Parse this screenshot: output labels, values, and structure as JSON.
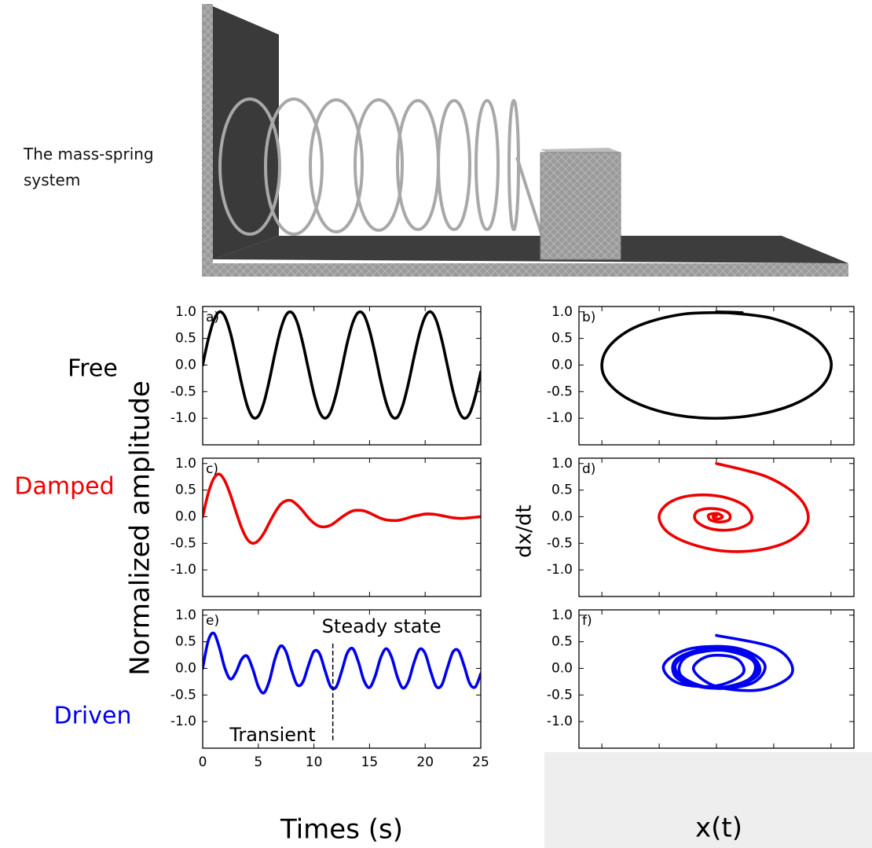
{
  "figure": {
    "illustration_label": "The mass-spring system",
    "row_labels": [
      {
        "text": "Free",
        "color": "#000000"
      },
      {
        "text": "Damped",
        "color": "#ee0000"
      },
      {
        "text": "Driven",
        "color": "#0000ee"
      }
    ],
    "y_label": "Normalized amplitude",
    "x_label": "Times (s)",
    "phase_y_label": "dx/dt",
    "phase_x_label": "x(t)"
  },
  "chart_data": [
    {
      "type": "line",
      "panel_label": "a)",
      "color": "#000000",
      "x": [
        0,
        0.5,
        1,
        1.5,
        2,
        2.5,
        3,
        3.5,
        4,
        4.5,
        5,
        5.5,
        6,
        6.5,
        7,
        7.5,
        8,
        8.5,
        9,
        9.5,
        10,
        10.5,
        11,
        11.5,
        12,
        12.5,
        13,
        13.5,
        14,
        14.5,
        15,
        15.5,
        16,
        16.5,
        17,
        17.5,
        18,
        18.5,
        19,
        19.5,
        20,
        20.5,
        21,
        21.5,
        22,
        22.5,
        23,
        23.5,
        24,
        24.5,
        25
      ],
      "values": [
        0,
        0.48,
        0.84,
        1.0,
        0.91,
        0.6,
        0.14,
        -0.35,
        -0.76,
        -0.98,
        -0.96,
        -0.71,
        -0.28,
        0.22,
        0.66,
        0.94,
        0.99,
        0.8,
        0.41,
        -0.07,
        -0.54,
        -0.88,
        -1.0,
        -0.88,
        -0.54,
        -0.07,
        0.42,
        0.8,
        0.99,
        0.94,
        0.65,
        0.21,
        -0.29,
        -0.71,
        -0.96,
        -0.98,
        -0.75,
        -0.34,
        0.15,
        0.6,
        0.91,
        1.0,
        0.84,
        0.47,
        -0.01,
        -0.49,
        -0.85,
        -1.0,
        -0.91,
        -0.59,
        -0.13
      ],
      "xlim": [
        0,
        25
      ],
      "xticks": [
        0,
        5,
        10,
        15,
        20,
        25
      ],
      "show_xtick_labels": false,
      "ylim": [
        -1.5,
        1.1
      ],
      "yticks": [
        {
          "value": 1,
          "label": "1.0"
        },
        0.5,
        {
          "value": 0,
          "label": "0.0"
        },
        -0.5,
        {
          "value": -1,
          "label": "-1.0"
        }
      ]
    },
    {
      "type": "line",
      "panel_label": "b)",
      "color": "#000000",
      "x": [
        0,
        0.48,
        0.84,
        1.0,
        0.91,
        0.6,
        0.14,
        -0.35,
        -0.76,
        -0.98,
        -0.96,
        -0.71,
        -0.28,
        0.22,
        0
      ],
      "values": [
        1,
        0.88,
        0.54,
        0.07,
        -0.42,
        -0.8,
        -0.99,
        -0.94,
        -0.65,
        -0.21,
        0.28,
        0.71,
        0.96,
        0.98,
        1
      ],
      "xlim": [
        -1.2,
        1.2
      ],
      "xticks": [
        -1,
        -0.5,
        0,
        0.5,
        1
      ],
      "show_xtick_labels": false,
      "ylim": [
        -1.5,
        1.1
      ],
      "yticks": [
        {
          "value": 1,
          "label": "1.0"
        },
        0.5,
        {
          "value": 0,
          "label": "0.0"
        },
        -0.5,
        {
          "value": -1,
          "label": "-1.0"
        }
      ]
    },
    {
      "type": "line",
      "panel_label": "c)",
      "color": "#ee0000",
      "x": [
        0,
        0.5,
        1,
        1.5,
        2,
        2.5,
        3,
        3.5,
        4,
        4.5,
        5,
        5.5,
        6,
        6.5,
        7,
        7.5,
        8,
        8.5,
        9,
        9.5,
        10,
        10.5,
        11,
        11.5,
        12,
        12.5,
        13,
        13.5,
        14,
        14.5,
        15,
        15.5,
        16,
        16.5,
        17,
        17.5,
        18,
        18.5,
        19,
        19.5,
        20,
        20.5,
        21,
        21.5,
        22,
        22.5,
        23,
        23.5,
        24,
        24.5,
        25
      ],
      "values": [
        0,
        0.44,
        0.72,
        0.8,
        0.67,
        0.41,
        0.09,
        -0.21,
        -0.42,
        -0.5,
        -0.45,
        -0.31,
        -0.11,
        0.08,
        0.23,
        0.3,
        0.3,
        0.22,
        0.11,
        -0.02,
        -0.12,
        -0.18,
        -0.19,
        -0.16,
        -0.09,
        -0.01,
        0.06,
        0.11,
        0.12,
        0.11,
        0.07,
        0.02,
        -0.03,
        -0.06,
        -0.07,
        -0.07,
        -0.05,
        -0.02,
        0.01,
        0.03,
        0.05,
        0.05,
        0.04,
        0.02,
        0,
        -0.02,
        -0.03,
        -0.03,
        -0.02,
        -0.01,
        0
      ],
      "xlim": [
        0,
        25
      ],
      "xticks": [
        0,
        5,
        10,
        15,
        20,
        25
      ],
      "show_xtick_labels": false,
      "ylim": [
        -1.5,
        1.1
      ],
      "yticks": [
        {
          "value": 1,
          "label": "1.0"
        },
        0.5,
        {
          "value": 0,
          "label": "0.0"
        },
        -0.5,
        {
          "value": -1,
          "label": "-1.0"
        }
      ]
    },
    {
      "type": "line",
      "panel_label": "d)",
      "color": "#ee0000",
      "x": [
        0,
        0.44,
        0.72,
        0.8,
        0.67,
        0.41,
        0.09,
        -0.21,
        -0.42,
        -0.5,
        -0.45,
        -0.31,
        -0.11,
        0.08,
        0.23,
        0.3,
        0.3,
        0.22,
        0.11,
        -0.02,
        -0.12,
        -0.18,
        -0.19,
        -0.16,
        -0.09,
        -0.01,
        0.06,
        0.11,
        0.12,
        0.11,
        0.07,
        0.02,
        -0.03,
        -0.06,
        -0.07,
        -0.07,
        -0.05,
        -0.02,
        0.01,
        0.03,
        0.05,
        0.05,
        0.04,
        0.02,
        0,
        -0.02,
        -0.03,
        -0.03,
        -0.02,
        -0.01,
        0
      ],
      "values": [
        1,
        0.75,
        0.36,
        -0.06,
        -0.41,
        -0.61,
        -0.65,
        -0.52,
        -0.3,
        -0.03,
        0.2,
        0.36,
        0.41,
        0.36,
        0.23,
        0.07,
        -0.09,
        -0.2,
        -0.25,
        -0.24,
        -0.17,
        -0.07,
        0.03,
        0.11,
        0.15,
        0.15,
        0.12,
        0.06,
        0,
        -0.06,
        -0.09,
        -0.1,
        -0.08,
        -0.05,
        -0.01,
        0.03,
        0.05,
        0.06,
        0.06,
        0.04,
        0.01,
        -0.01,
        -0.03,
        -0.04,
        -0.04,
        -0.03,
        -0.01,
        0,
        0.02,
        0.02,
        0.02
      ],
      "xlim": [
        -1.2,
        1.2
      ],
      "xticks": [
        -1,
        -0.5,
        0,
        0.5,
        1
      ],
      "show_xtick_labels": false,
      "ylim": [
        -1.5,
        1.1
      ],
      "yticks": [
        {
          "value": 1,
          "label": "1.0"
        },
        0.5,
        {
          "value": 0,
          "label": "0.0"
        },
        -0.5,
        {
          "value": -1,
          "label": "-1.0"
        }
      ]
    },
    {
      "type": "line",
      "panel_label": "e)",
      "color": "#0000ee",
      "x": [
        0,
        0.5,
        1,
        1.5,
        2,
        2.5,
        3,
        3.5,
        4,
        4.5,
        5,
        5.5,
        6,
        6.5,
        7,
        7.5,
        8,
        8.5,
        9,
        9.5,
        10,
        10.5,
        11,
        11.5,
        12,
        12.5,
        13,
        13.5,
        14,
        14.5,
        15,
        15.5,
        16,
        16.5,
        17,
        17.5,
        18,
        18.5,
        19,
        19.5,
        20,
        20.5,
        21,
        21.5,
        22,
        22.5,
        23,
        23.5,
        24,
        24.5,
        25
      ],
      "values": [
        0,
        0.52,
        0.66,
        0.39,
        0,
        -0.2,
        -0.07,
        0.17,
        0.23,
        -0.01,
        -0.34,
        -0.46,
        -0.23,
        0.18,
        0.42,
        0.31,
        -0.04,
        -0.31,
        -0.26,
        0.05,
        0.32,
        0.28,
        -0.04,
        -0.34,
        -0.35,
        -0.05,
        0.29,
        0.37,
        0.12,
        -0.23,
        -0.36,
        -0.15,
        0.2,
        0.37,
        0.2,
        -0.16,
        -0.37,
        -0.24,
        0.11,
        0.36,
        0.28,
        -0.06,
        -0.34,
        -0.31,
        0.01,
        0.31,
        0.33,
        0.05,
        -0.28,
        -0.35,
        -0.1
      ],
      "xlim": [
        0,
        25
      ],
      "xticks": [
        0,
        5,
        10,
        15,
        20,
        25
      ],
      "show_xtick_labels": true,
      "ylim": [
        -1.5,
        1.1
      ],
      "yticks": [
        {
          "value": 1,
          "label": "1.0"
        },
        0.5,
        {
          "value": 0,
          "label": "0.0"
        },
        -0.5,
        {
          "value": -1,
          "label": "-1.0"
        }
      ],
      "annotations": [
        "Steady state",
        "Transient"
      ],
      "marker_line": {
        "x": 11.7,
        "y": [
          -1.35,
          0.5
        ]
      }
    },
    {
      "type": "line",
      "panel_label": "f)",
      "color": "#0000ee",
      "x": [
        0,
        0.52,
        0.66,
        0.39,
        0,
        -0.2,
        -0.07,
        0.17,
        0.23,
        -0.01,
        -0.34,
        -0.46,
        -0.23,
        0.18,
        0.42,
        0.31,
        -0.04,
        -0.31,
        -0.26,
        0.05,
        0.32,
        0.28,
        -0.04,
        -0.34,
        -0.35,
        -0.05,
        0.29,
        0.37,
        0.12,
        -0.23,
        -0.36,
        -0.15,
        0.2,
        0.37,
        0.2,
        -0.16,
        -0.37,
        -0.24,
        0.11,
        0.36,
        0.28,
        -0.06,
        -0.34,
        -0.31,
        0.01,
        0.31,
        0.33,
        0.05,
        -0.28,
        -0.35,
        -0.1
      ],
      "values": [
        0.62,
        0.37,
        -0.09,
        -0.4,
        -0.34,
        -0.02,
        0.23,
        0.19,
        -0.1,
        -0.33,
        -0.27,
        0.06,
        0.37,
        0.38,
        0.08,
        -0.28,
        -0.37,
        -0.13,
        0.22,
        0.34,
        0.14,
        -0.21,
        -0.37,
        -0.19,
        0.17,
        0.38,
        0.25,
        -0.1,
        -0.36,
        -0.28,
        0.06,
        0.34,
        0.31,
        0,
        -0.31,
        -0.33,
        -0.05,
        0.28,
        0.35,
        0.1,
        -0.25,
        -0.37,
        -0.15,
        0.21,
        0.37,
        0.19,
        -0.16,
        -0.37,
        -0.24,
        0.11,
        0.36
      ],
      "xlim": [
        -1.2,
        1.2
      ],
      "xticks": [
        -1,
        -0.5,
        0,
        0.5,
        1
      ],
      "show_xtick_labels": false,
      "ylim": [
        -1.5,
        1.1
      ],
      "yticks": [
        {
          "value": 1,
          "label": "1.0"
        },
        0.5,
        {
          "value": 0,
          "label": "0.0"
        },
        -0.5,
        {
          "value": -1,
          "label": "-1.0"
        }
      ]
    }
  ]
}
